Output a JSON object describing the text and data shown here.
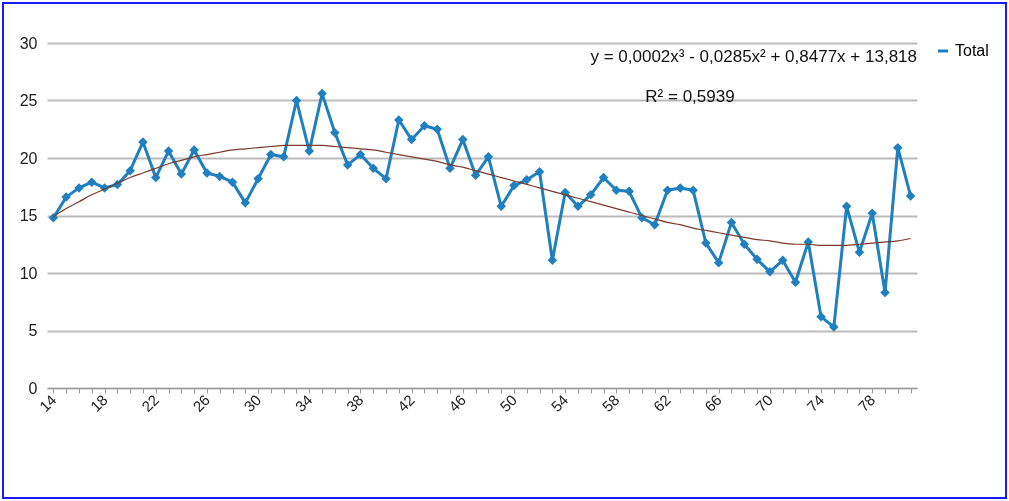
{
  "chart_data": {
    "type": "line",
    "categories": [
      "14",
      null,
      null,
      null,
      "18",
      null,
      null,
      null,
      "22",
      null,
      null,
      null,
      "26",
      null,
      null,
      null,
      "30",
      null,
      null,
      null,
      "34",
      null,
      null,
      null,
      "38",
      null,
      null,
      null,
      "42",
      null,
      null,
      null,
      "46",
      null,
      null,
      null,
      "50",
      null,
      null,
      null,
      "54",
      null,
      null,
      null,
      "58",
      null,
      null,
      null,
      "62",
      null,
      null,
      null,
      "66",
      null,
      null,
      null,
      "70",
      null,
      null,
      null,
      "74",
      null,
      null,
      null,
      "78",
      null,
      null,
      null
    ],
    "series": [
      {
        "name": "Total",
        "color": "#1f7fbf",
        "values": [
          14.8,
          16.6,
          17.4,
          17.9,
          17.4,
          17.7,
          18.9,
          21.4,
          18.3,
          20.6,
          18.6,
          20.7,
          18.7,
          18.4,
          17.9,
          16.1,
          18.2,
          20.3,
          20.1,
          25.0,
          20.6,
          25.6,
          22.2,
          19.4,
          20.3,
          19.1,
          18.2,
          23.3,
          21.6,
          22.8,
          22.5,
          19.1,
          21.6,
          18.5,
          20.1,
          15.8,
          17.6,
          18.1,
          18.8,
          11.1,
          17.0,
          15.8,
          16.8,
          18.3,
          17.2,
          17.1,
          14.8,
          14.2,
          17.2,
          17.4,
          17.2,
          12.6,
          10.9,
          14.4,
          12.5,
          11.2,
          10.1,
          11.1,
          9.2,
          12.7,
          6.2,
          5.3,
          15.8,
          11.8,
          15.2,
          8.3,
          20.9,
          16.7
        ]
      },
      {
        "type": "line",
        "color": "#7a3b2e",
        "marker": "none",
        "values": [
          14.9,
          15.6,
          16.2,
          16.8,
          17.3,
          17.8,
          18.3,
          18.7,
          19.1,
          19.5,
          19.8,
          20.1,
          20.3,
          20.5,
          20.7,
          20.8,
          20.9,
          21.0,
          21.1,
          21.1,
          21.1,
          21.1,
          21.0,
          20.9,
          20.8,
          20.7,
          20.5,
          20.3,
          20.1,
          19.9,
          19.7,
          19.4,
          19.2,
          18.9,
          18.6,
          18.3,
          18.0,
          17.7,
          17.4,
          17.1,
          16.8,
          16.5,
          16.2,
          15.9,
          15.6,
          15.3,
          15.0,
          14.7,
          14.4,
          14.2,
          13.9,
          13.7,
          13.5,
          13.3,
          13.1,
          12.9,
          12.8,
          12.6,
          12.5,
          12.5,
          12.4,
          12.4,
          12.4,
          12.5,
          12.6,
          12.7,
          12.8,
          13.0
        ]
      }
    ],
    "ylim": [
      0,
      30
    ],
    "yticks": [
      0,
      5,
      10,
      15,
      20,
      25,
      30
    ],
    "grid": "y",
    "legend": "right",
    "marker": "diamond",
    "annotations": [
      "y = 0,0002x³ - 0,0285x² + 0,8477x + 13,818",
      "R² = 0,5939"
    ]
  }
}
